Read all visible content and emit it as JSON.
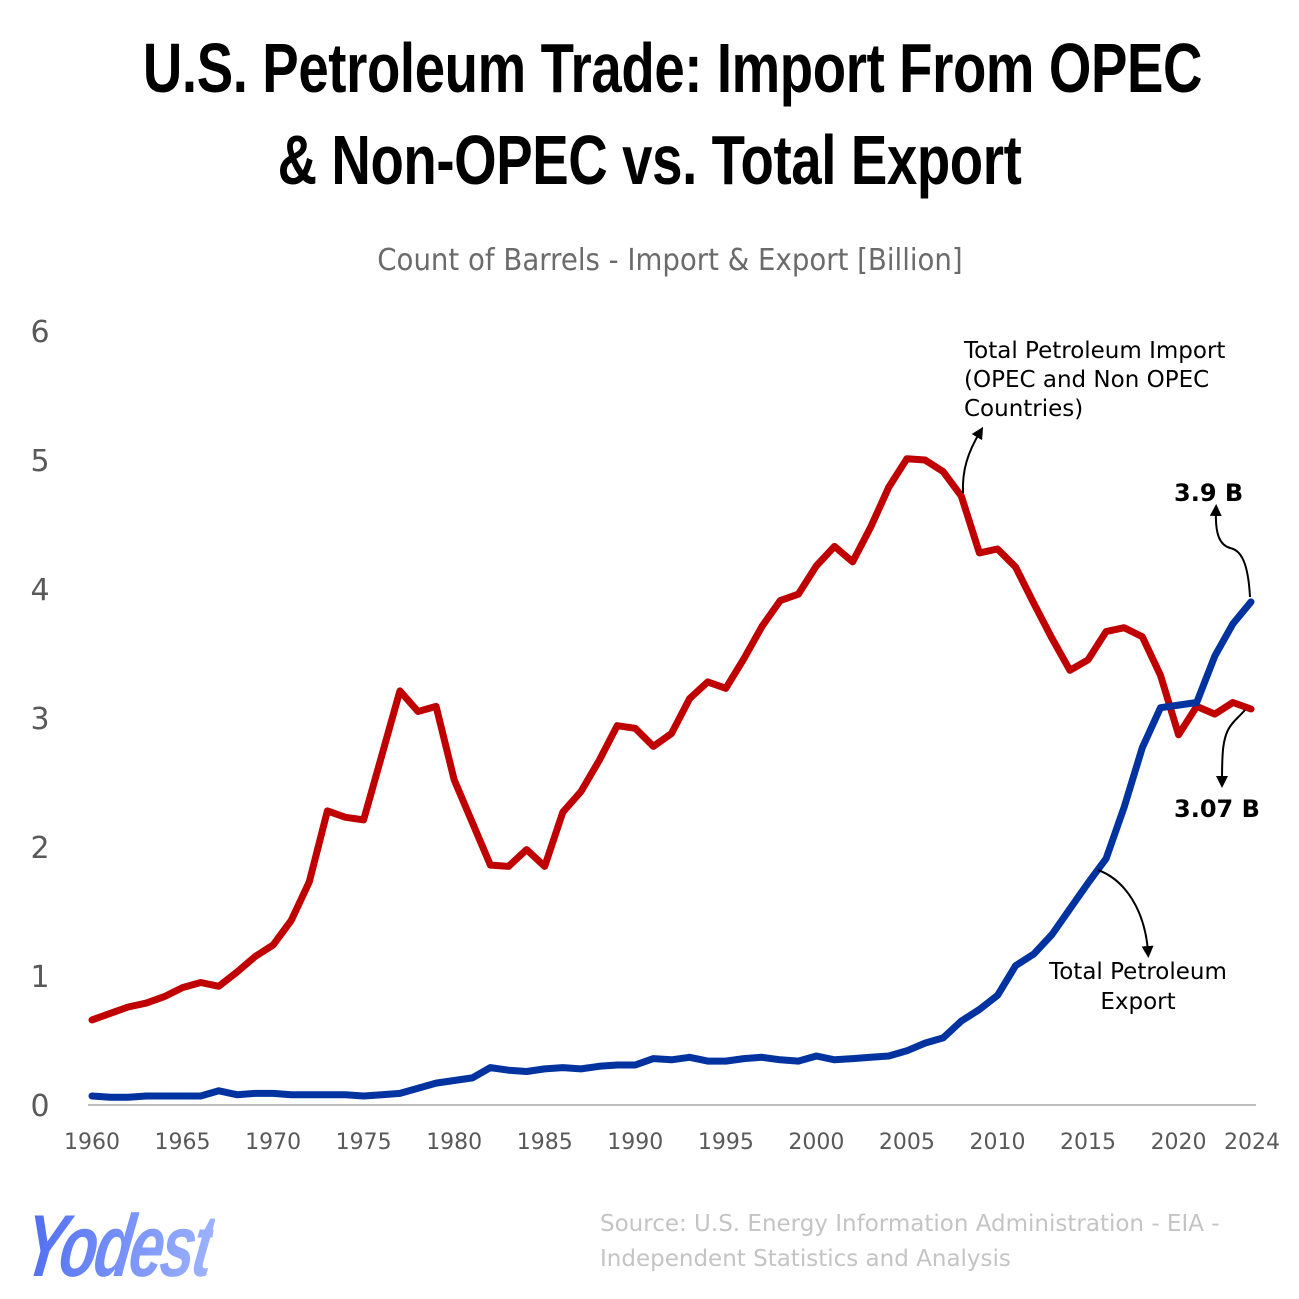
{
  "title_line1": "U.S. Petroleum Trade: Import From OPEC",
  "title_line2": "& Non-OPEC vs. Total Export",
  "subtitle": "Count of Barrels - Import & Export [Billion]",
  "source_line1": "Source: U.S. Energy Information Administration - EIA -",
  "source_line2": "Independent Statistics and Analysis",
  "logo_text": "Yodest",
  "chart_data": {
    "type": "line",
    "title": "U.S. Petroleum Trade: Import From OPEC & Non-OPEC vs. Total Export",
    "ylabel": "Count of Barrels - Import & Export [Billion]",
    "ylim": [
      0,
      6
    ],
    "yticks": [
      "0",
      "1",
      "2",
      "3",
      "4",
      "5",
      "6"
    ],
    "xlim": [
      1960,
      2024
    ],
    "xticks": [
      "1960",
      "1965",
      "1970",
      "1975",
      "1980",
      "1985",
      "1990",
      "1995",
      "2000",
      "2005",
      "2010",
      "2015",
      "2020",
      "2024"
    ],
    "grid": false,
    "x": [
      1960,
      1961,
      1962,
      1963,
      1964,
      1965,
      1966,
      1967,
      1968,
      1969,
      1970,
      1971,
      1972,
      1973,
      1974,
      1975,
      1976,
      1977,
      1978,
      1979,
      1980,
      1981,
      1982,
      1983,
      1984,
      1985,
      1986,
      1987,
      1988,
      1989,
      1990,
      1991,
      1992,
      1993,
      1994,
      1995,
      1996,
      1997,
      1998,
      1999,
      2000,
      2001,
      2002,
      2003,
      2004,
      2005,
      2006,
      2007,
      2008,
      2009,
      2010,
      2011,
      2012,
      2013,
      2014,
      2015,
      2016,
      2017,
      2018,
      2019,
      2020,
      2021,
      2022,
      2023,
      2024
    ],
    "series": [
      {
        "color": "#c00000",
        "values": [
          0.66,
          0.71,
          0.76,
          0.79,
          0.84,
          0.91,
          0.95,
          0.92,
          1.03,
          1.15,
          1.24,
          1.43,
          1.73,
          2.28,
          2.23,
          2.21,
          2.71,
          3.21,
          3.05,
          3.09,
          2.52,
          2.19,
          1.86,
          1.85,
          1.98,
          1.85,
          2.27,
          2.43,
          2.67,
          2.94,
          2.92,
          2.78,
          2.88,
          3.15,
          3.28,
          3.23,
          3.46,
          3.71,
          3.91,
          3.96,
          4.18,
          4.33,
          4.21,
          4.48,
          4.79,
          5.01,
          5.0,
          4.91,
          4.72,
          4.28,
          4.31,
          4.17,
          3.89,
          3.62,
          3.37,
          3.45,
          3.67,
          3.7,
          3.63,
          3.33,
          2.87,
          3.09,
          3.03,
          3.12,
          3.07
        ]
      },
      {
        "color": "#0033a0",
        "values": [
          0.07,
          0.06,
          0.06,
          0.07,
          0.07,
          0.07,
          0.07,
          0.11,
          0.08,
          0.09,
          0.09,
          0.08,
          0.08,
          0.08,
          0.08,
          0.07,
          0.08,
          0.09,
          0.13,
          0.17,
          0.19,
          0.21,
          0.29,
          0.27,
          0.26,
          0.28,
          0.29,
          0.28,
          0.3,
          0.31,
          0.31,
          0.36,
          0.35,
          0.37,
          0.34,
          0.34,
          0.36,
          0.37,
          0.35,
          0.34,
          0.38,
          0.35,
          0.36,
          0.37,
          0.38,
          0.42,
          0.48,
          0.52,
          0.65,
          0.74,
          0.85,
          1.08,
          1.17,
          1.32,
          1.52,
          1.72,
          1.91,
          2.31,
          2.77,
          3.08,
          3.1,
          3.12,
          3.48,
          3.73,
          3.9
        ]
      }
    ],
    "annotations": {
      "import_label": [
        "Total Petroleum Import",
        "(OPEC and Non OPEC",
        "Countries)"
      ],
      "export_label": [
        "Total Petroleum",
        "Export"
      ],
      "export_end": "3.9 B",
      "import_end": "3.07 B"
    }
  }
}
